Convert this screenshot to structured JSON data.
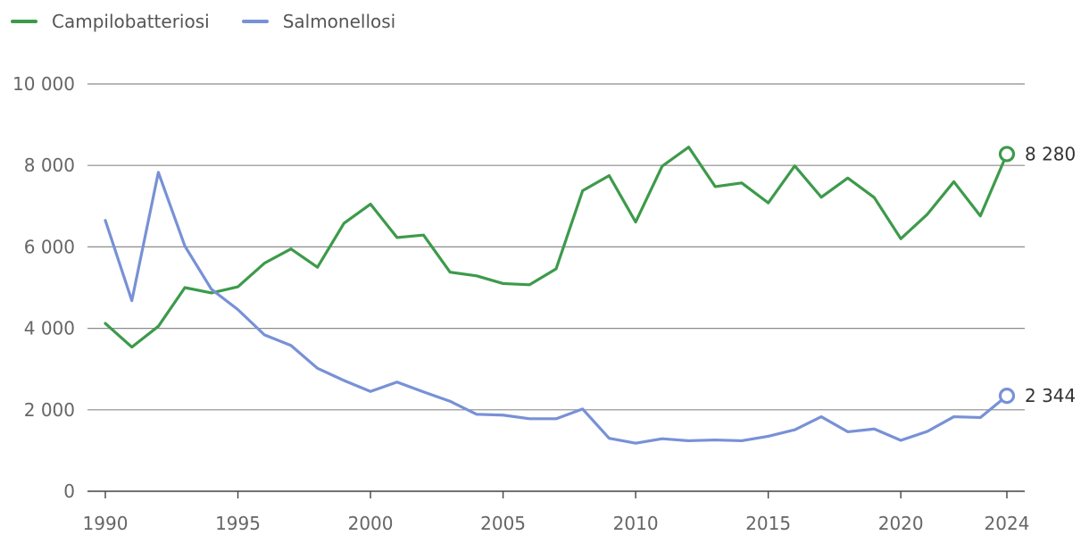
{
  "chart_data": {
    "type": "line",
    "title": "",
    "xlabel": "",
    "ylabel": "",
    "x": [
      1990,
      1991,
      1992,
      1993,
      1994,
      1995,
      1996,
      1997,
      1998,
      1999,
      2000,
      2001,
      2002,
      2003,
      2004,
      2005,
      2006,
      2007,
      2008,
      2009,
      2010,
      2011,
      2012,
      2013,
      2014,
      2015,
      2016,
      2017,
      2018,
      2019,
      2020,
      2021,
      2022,
      2023,
      2024
    ],
    "xlim": [
      1990,
      2024
    ],
    "x_ticks": [
      1990,
      1995,
      2000,
      2005,
      2010,
      2015,
      2020,
      2024
    ],
    "x_tick_labels": [
      "1990",
      "1995",
      "2000",
      "2005",
      "2010",
      "2015",
      "2020",
      "2024"
    ],
    "ylim": [
      0,
      10000
    ],
    "y_ticks": [
      0,
      2000,
      4000,
      6000,
      8000,
      10000
    ],
    "y_tick_labels": [
      "0",
      "2 000",
      "4 000",
      "6 000",
      "8 000",
      "10 000"
    ],
    "grid": "horizontal",
    "legend_position": "top-left",
    "series": [
      {
        "name": "Campilobatteriosi",
        "color": "#3d9a4b",
        "end_label": "8 280",
        "values": [
          4120,
          3540,
          4050,
          5000,
          4870,
          5020,
          5600,
          5950,
          5500,
          6580,
          7050,
          6230,
          6290,
          5380,
          5290,
          5100,
          5070,
          5460,
          7380,
          7750,
          6610,
          7980,
          8450,
          7480,
          7570,
          7080,
          7990,
          7220,
          7690,
          7210,
          6200,
          6800,
          7600,
          6760,
          8280
        ]
      },
      {
        "name": "Salmonellosi",
        "color": "#7891d6",
        "end_label": "2 344",
        "values": [
          6650,
          4680,
          7830,
          6020,
          4960,
          4460,
          3840,
          3580,
          3020,
          2720,
          2450,
          2680,
          2440,
          2210,
          1890,
          1870,
          1780,
          1780,
          2020,
          1300,
          1180,
          1290,
          1240,
          1260,
          1240,
          1350,
          1510,
          1830,
          1460,
          1530,
          1250,
          1470,
          1830,
          1810,
          2344
        ]
      }
    ]
  }
}
